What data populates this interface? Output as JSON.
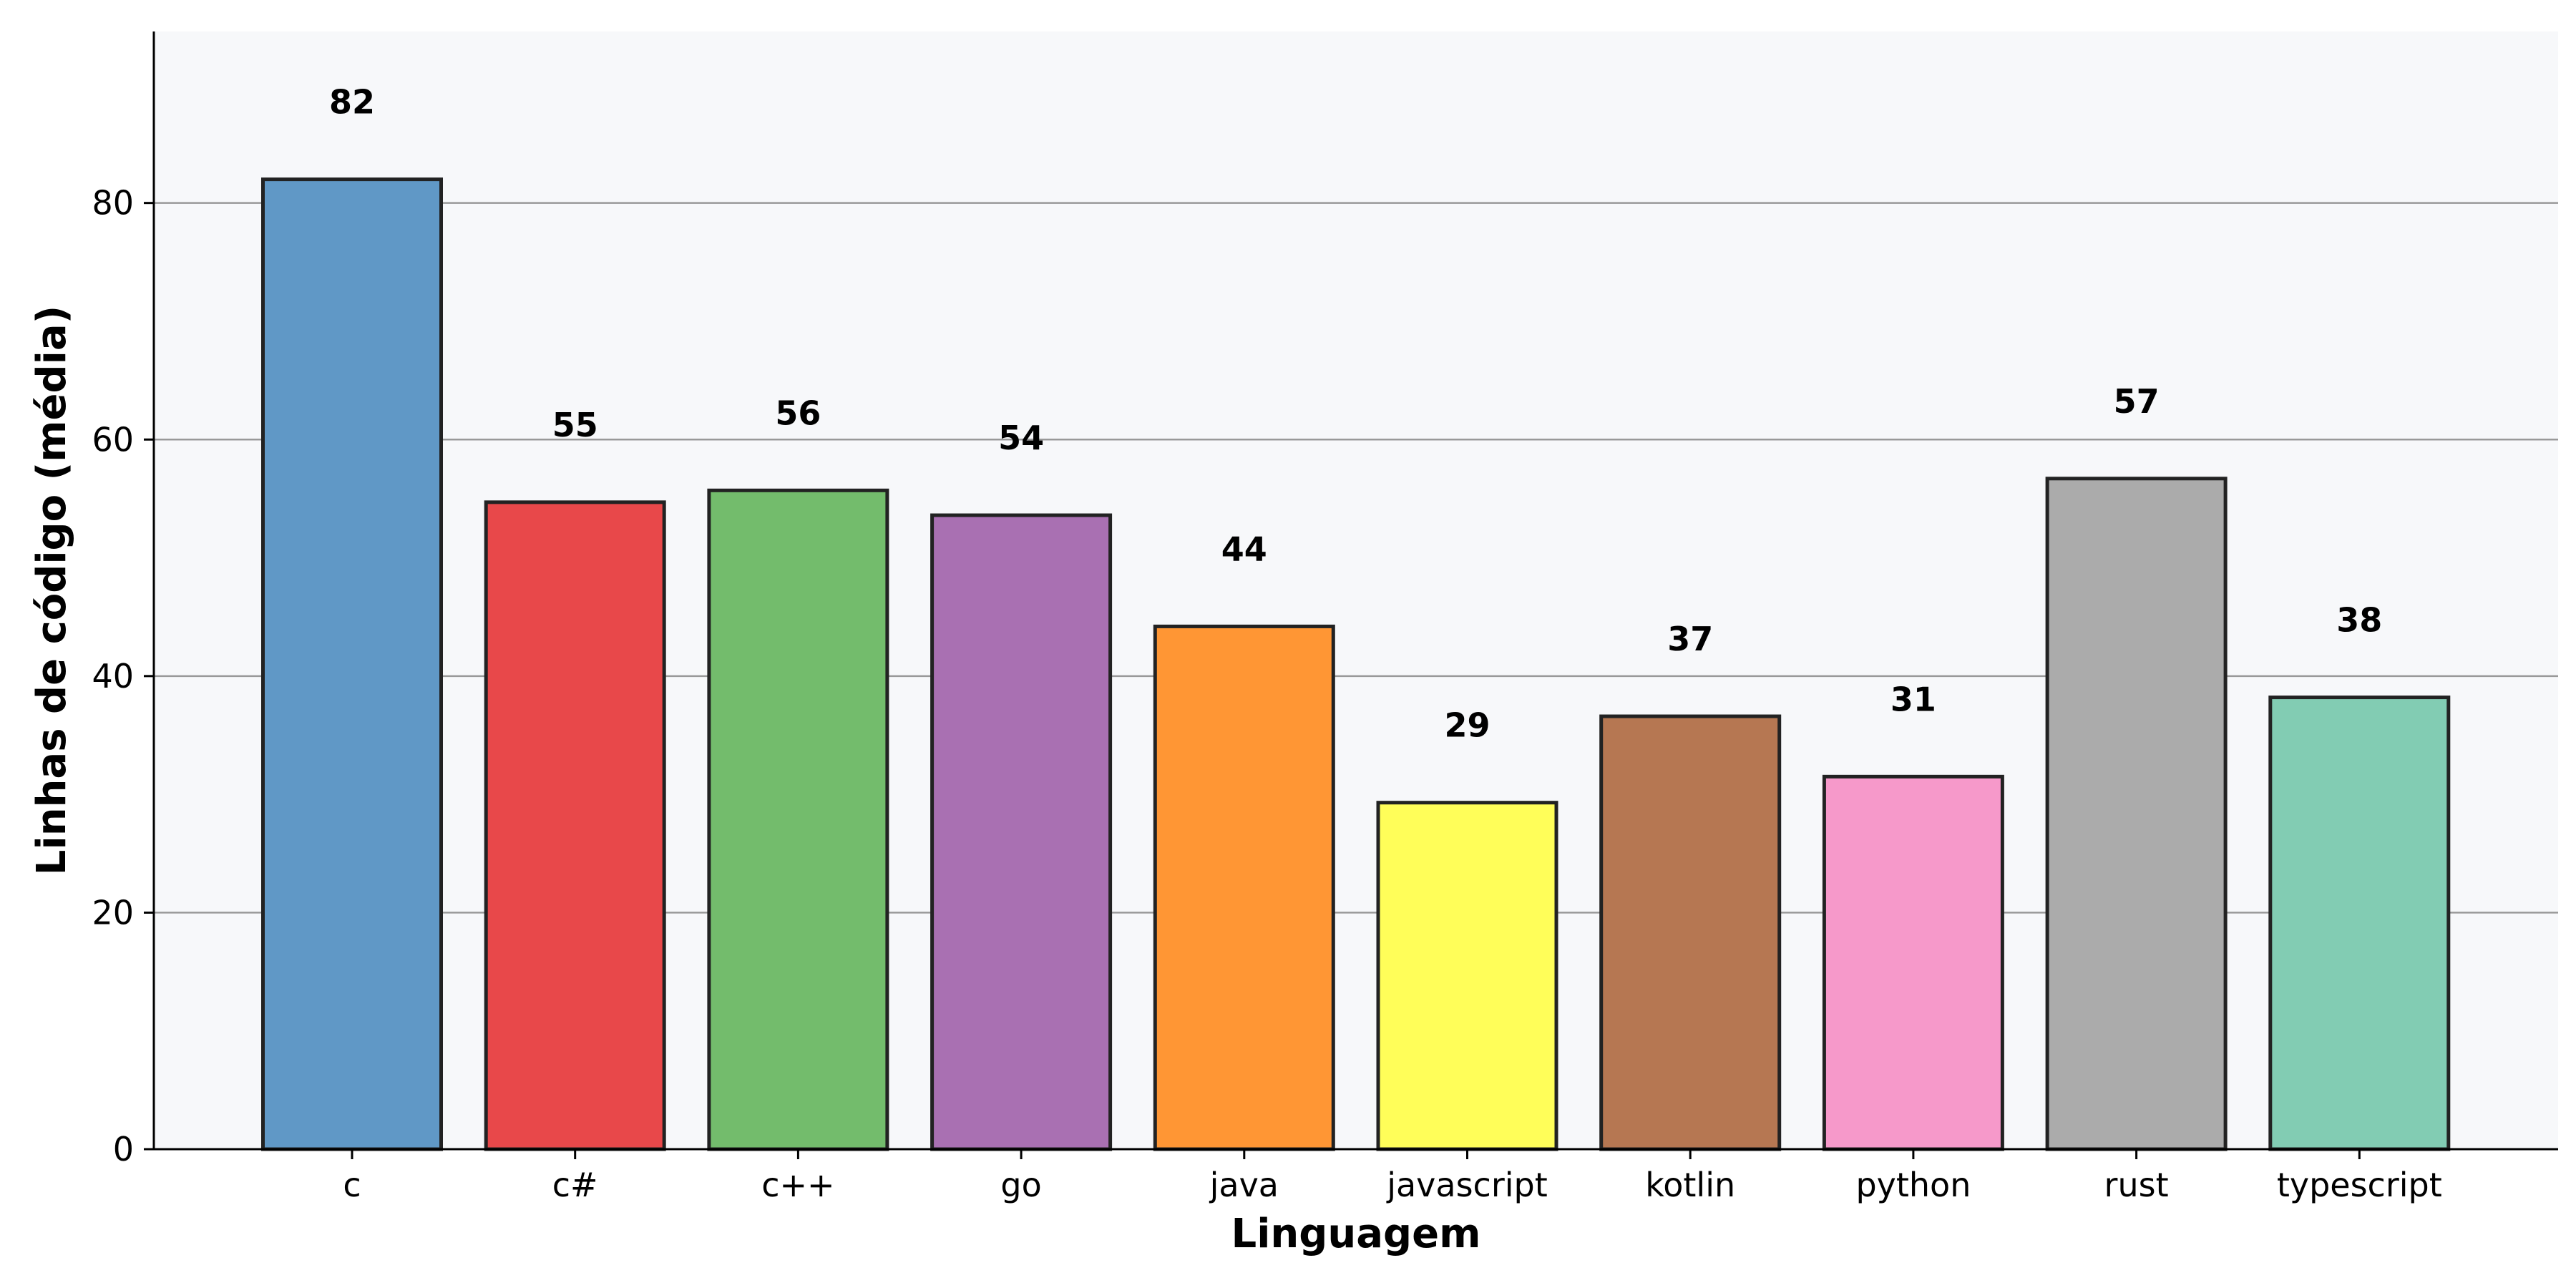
{
  "chart_data": {
    "type": "bar",
    "title": "",
    "xlabel": "Linguagem",
    "ylabel": "Linhas de código (média)",
    "categories": [
      "c",
      "c#",
      "c++",
      "go",
      "java",
      "javascript",
      "kotlin",
      "python",
      "rust",
      "typescript"
    ],
    "values": [
      82,
      54.7,
      55.7,
      53.6,
      44.2,
      29.3,
      36.6,
      31.5,
      56.7,
      38.2
    ],
    "data_labels": [
      "82",
      "55",
      "56",
      "54",
      "44",
      "29",
      "37",
      "31",
      "57",
      "38"
    ],
    "colors": [
      "#6098C6",
      "#E8484A",
      "#73BC6C",
      "#A970B2",
      "#FF9634",
      "#FFFE59",
      "#B67752",
      "#F699CA",
      "#ABABAB",
      "#82CCB3"
    ],
    "ylim": [
      0,
      94.5
    ],
    "yticks": [
      0,
      20,
      40,
      60,
      80
    ],
    "ytick_labels": [
      "0",
      "20",
      "40",
      "60",
      "80"
    ],
    "grid": "y",
    "plot_background": "#F7F8FA",
    "grid_color": "#999999",
    "edge_color": "#222222"
  }
}
